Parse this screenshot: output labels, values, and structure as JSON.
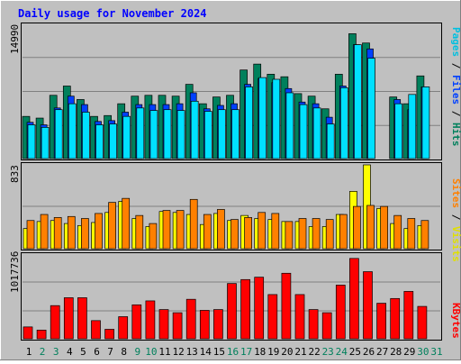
{
  "title": "Daily usage for November 2024",
  "colors": {
    "background": "#c0c0c0",
    "title": "#0000ff",
    "hits": "#00805c",
    "files": "#0040ff",
    "pages": "#00e0ff",
    "visits": "#ffff00",
    "sites": "#ff8000",
    "kbytes": "#ff0000",
    "weekend_day": "#00805c",
    "weekday": "#000000"
  },
  "chart_data": [
    {
      "type": "bar",
      "panel": "hits-files-pages",
      "ymax_label": "14990",
      "ylim": [
        0,
        15700
      ],
      "legend": [
        "Pages",
        "Files",
        "Hits"
      ],
      "categories": [
        "1",
        "2",
        "3",
        "4",
        "5",
        "6",
        "7",
        "8",
        "9",
        "10",
        "11",
        "12",
        "13",
        "14",
        "15",
        "16",
        "17",
        "18",
        "19",
        "20",
        "21",
        "22",
        "23",
        "24",
        "25",
        "26",
        "27",
        "28",
        "29",
        "30"
      ],
      "series": [
        {
          "name": "Hits",
          "values": [
            5000,
            4800,
            7500,
            8600,
            7000,
            5000,
            5100,
            6500,
            7400,
            7500,
            7500,
            7400,
            8800,
            6500,
            7300,
            7500,
            10500,
            11200,
            10000,
            9700,
            7700,
            7400,
            5900,
            10000,
            14800,
            13700,
            0,
            7300,
            6500,
            9800
          ]
        },
        {
          "name": "Files",
          "values": [
            4300,
            4000,
            6000,
            7400,
            6400,
            4400,
            4500,
            5500,
            6400,
            6400,
            6400,
            6500,
            7800,
            5900,
            6300,
            6500,
            8800,
            9500,
            9000,
            8300,
            6700,
            6500,
            4900,
            8600,
            13500,
            13000,
            0,
            7000,
            5800,
            8500
          ]
        },
        {
          "name": "Pages",
          "values": [
            4000,
            3700,
            5800,
            6500,
            5500,
            4000,
            4100,
            5000,
            6000,
            5700,
            5800,
            5700,
            6800,
            5600,
            5800,
            5800,
            8500,
            9600,
            9400,
            7800,
            6400,
            6000,
            4100,
            8400,
            13500,
            11900,
            0,
            6500,
            7600,
            8500
          ]
        }
      ]
    },
    {
      "type": "bar",
      "panel": "visits-sites",
      "ymax_label": "833",
      "ylim": [
        0,
        833
      ],
      "legend": [
        "Sites",
        "Visits"
      ],
      "categories": [
        "1",
        "2",
        "3",
        "4",
        "5",
        "6",
        "7",
        "8",
        "9",
        "10",
        "11",
        "12",
        "13",
        "14",
        "15",
        "16",
        "17",
        "18",
        "19",
        "20",
        "21",
        "22",
        "23",
        "24",
        "25",
        "26",
        "27",
        "28",
        "29",
        "30"
      ],
      "series": [
        {
          "name": "Visits",
          "values": [
            200,
            270,
            280,
            250,
            230,
            260,
            360,
            470,
            300,
            220,
            370,
            360,
            340,
            240,
            350,
            280,
            330,
            300,
            290,
            270,
            270,
            220,
            220,
            340,
            570,
            833,
            400,
            250,
            200,
            230
          ]
        },
        {
          "name": "Sites",
          "values": [
            280,
            340,
            310,
            320,
            300,
            350,
            460,
            500,
            330,
            250,
            380,
            380,
            490,
            340,
            390,
            290,
            310,
            360,
            350,
            270,
            300,
            300,
            290,
            340,
            420,
            430,
            420,
            330,
            300,
            280
          ]
        }
      ]
    },
    {
      "type": "bar",
      "panel": "kbytes",
      "ymax_label": "1017736",
      "ylim": [
        0,
        1050000
      ],
      "legend": [
        "KBytes"
      ],
      "categories": [
        "1",
        "2",
        "3",
        "4",
        "5",
        "6",
        "7",
        "8",
        "9",
        "10",
        "11",
        "12",
        "13",
        "14",
        "15",
        "16",
        "17",
        "18",
        "19",
        "20",
        "21",
        "22",
        "23",
        "24",
        "25",
        "26",
        "27",
        "28",
        "29",
        "30"
      ],
      "series": [
        {
          "name": "KBytes",
          "values": [
            150000,
            110000,
            420000,
            520000,
            520000,
            230000,
            120000,
            280000,
            430000,
            480000,
            370000,
            330000,
            500000,
            360000,
            370000,
            700000,
            750000,
            780000,
            560000,
            830000,
            560000,
            370000,
            330000,
            680000,
            1017736,
            850000,
            450000,
            510000,
            600000,
            410000
          ]
        }
      ]
    }
  ],
  "day_labels": [
    "1",
    "2",
    "3",
    "4",
    "5",
    "6",
    "7",
    "8",
    "9",
    "10",
    "11",
    "12",
    "13",
    "14",
    "15",
    "16",
    "17",
    "18",
    "19",
    "20",
    "21",
    "22",
    "23",
    "24",
    "25",
    "26",
    "27",
    "28",
    "29",
    "30",
    "31"
  ],
  "weekend_days": [
    "2",
    "3",
    "9",
    "10",
    "16",
    "17",
    "23",
    "24",
    "30",
    "31"
  ]
}
